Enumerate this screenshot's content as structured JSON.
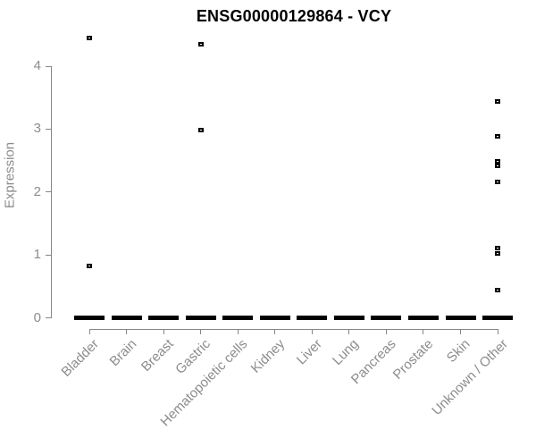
{
  "chart_data": {
    "type": "boxplot",
    "title": "ENSG00000129864 - VCY",
    "xlabel": "",
    "ylabel": "Expression",
    "ylim": [
      0,
      4
    ],
    "yticks": [
      0,
      1,
      2,
      3,
      4
    ],
    "grid": false,
    "legend": false,
    "categories": [
      "Bladder",
      "Brain",
      "Breast",
      "Gastric",
      "Hematopoietic cells",
      "Kidney",
      "Liver",
      "Lung",
      "Pancreas",
      "Prostate",
      "Skin",
      "Unknown / Other"
    ],
    "boxes": [
      {
        "category": "Bladder",
        "median": 0,
        "outliers": [
          4.45,
          0.83
        ]
      },
      {
        "category": "Brain",
        "median": 0,
        "outliers": []
      },
      {
        "category": "Breast",
        "median": 0,
        "outliers": []
      },
      {
        "category": "Gastric",
        "median": 0,
        "outliers": [
          4.35,
          2.99
        ]
      },
      {
        "category": "Hematopoietic cells",
        "median": 0,
        "outliers": []
      },
      {
        "category": "Kidney",
        "median": 0,
        "outliers": []
      },
      {
        "category": "Liver",
        "median": 0,
        "outliers": []
      },
      {
        "category": "Lung",
        "median": 0,
        "outliers": []
      },
      {
        "category": "Pancreas",
        "median": 0,
        "outliers": []
      },
      {
        "category": "Prostate",
        "median": 0,
        "outliers": []
      },
      {
        "category": "Skin",
        "median": 0,
        "outliers": []
      },
      {
        "category": "Unknown / Other",
        "median": 0,
        "outliers": [
          3.44,
          2.89,
          2.49,
          2.42,
          2.16,
          1.11,
          1.03,
          0.44
        ]
      }
    ],
    "colors": {
      "title": "#000000",
      "box": "#000000",
      "outlier": "#000000",
      "axis_line": "#878787",
      "tick_text": "#8c8c8c"
    }
  }
}
